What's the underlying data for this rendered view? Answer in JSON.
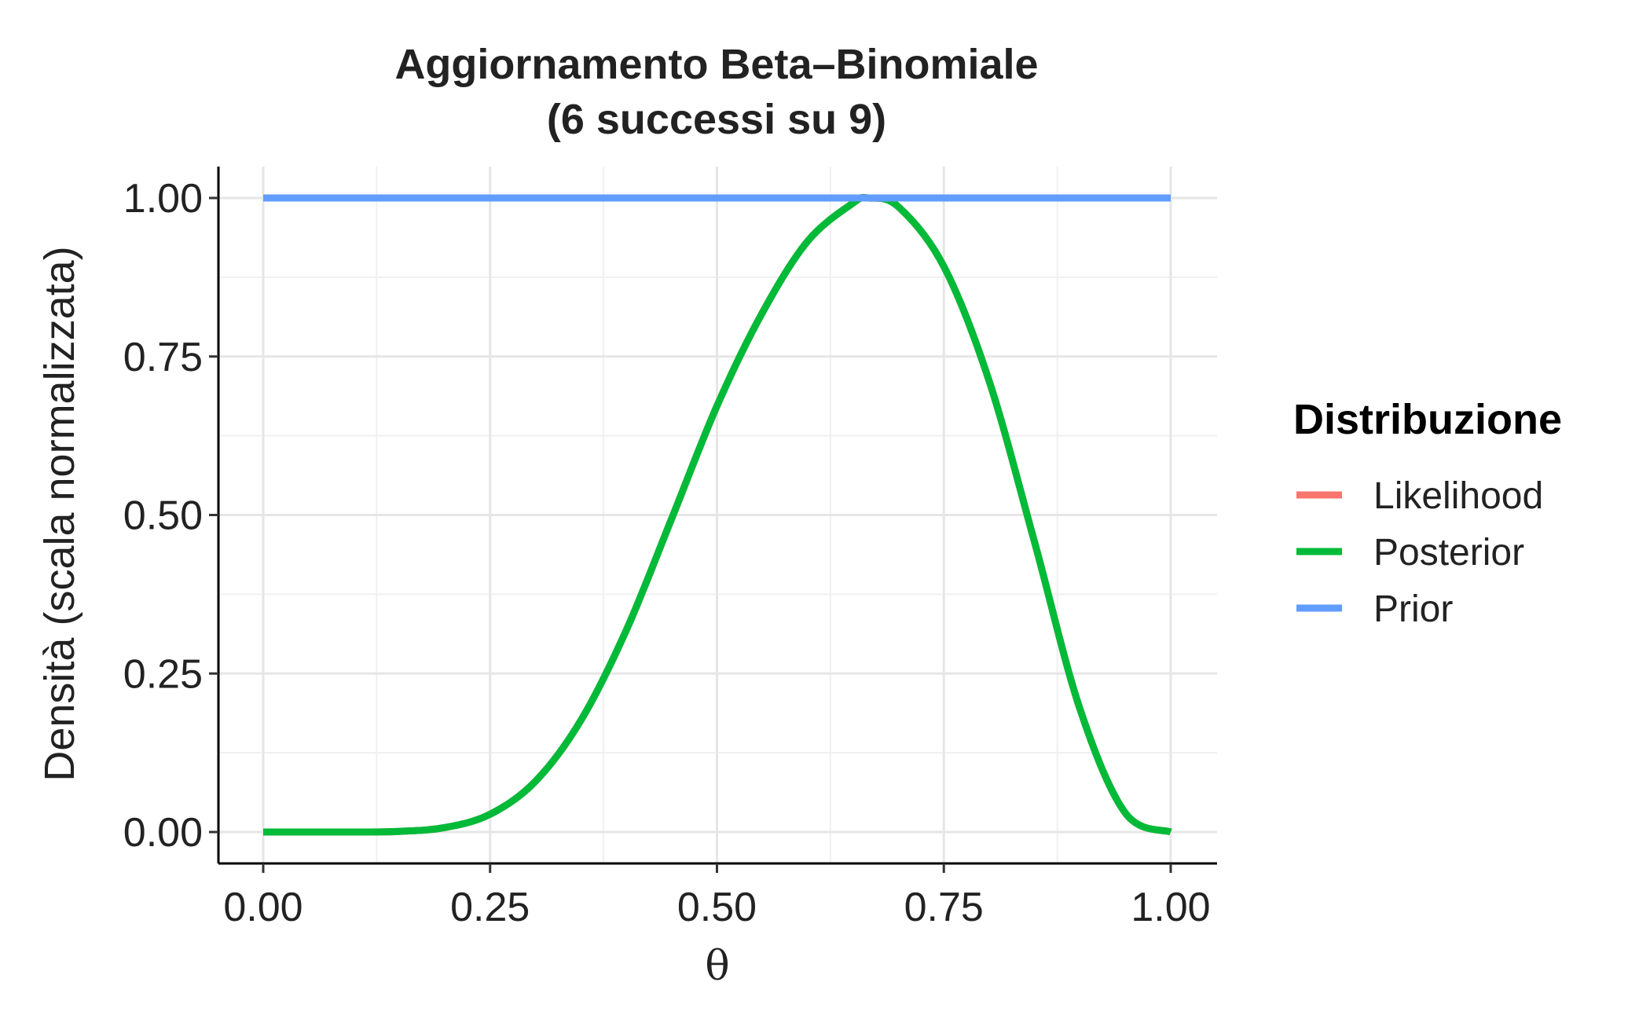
{
  "chart_data": {
    "type": "line",
    "title": "Aggiornamento Beta–Binomiale",
    "subtitle": "(6 successi su 9)",
    "xlabel": "θ",
    "ylabel": "Densità (scala normalizzata)",
    "xlim": [
      0,
      1
    ],
    "ylim": [
      0,
      1
    ],
    "x_ticks": [
      "0.00",
      "0.25",
      "0.50",
      "0.75",
      "1.00"
    ],
    "y_ticks": [
      "0.00",
      "0.25",
      "0.50",
      "0.75",
      "1.00"
    ],
    "grid": true,
    "legend_title": "Distribuzione",
    "legend_position": "right",
    "series": [
      {
        "name": "Likelihood",
        "color": "#F8766D",
        "x": [
          0.0,
          0.05,
          0.1,
          0.15,
          0.2,
          0.25,
          0.3,
          0.35,
          0.4,
          0.45,
          0.5,
          0.55,
          0.6,
          0.65,
          0.6667,
          0.7,
          0.75,
          0.8,
          0.85,
          0.9,
          0.95,
          1.0
        ],
        "values": [
          0.0,
          0.0,
          0.0,
          0.001,
          0.007,
          0.028,
          0.08,
          0.176,
          0.318,
          0.494,
          0.672,
          0.819,
          0.932,
          0.992,
          1.0,
          0.986,
          0.892,
          0.711,
          0.457,
          0.194,
          0.03,
          0.0
        ]
      },
      {
        "name": "Posterior",
        "color": "#00BA38",
        "x": [
          0.0,
          0.05,
          0.1,
          0.15,
          0.2,
          0.25,
          0.3,
          0.35,
          0.4,
          0.45,
          0.5,
          0.55,
          0.6,
          0.65,
          0.6667,
          0.7,
          0.75,
          0.8,
          0.85,
          0.9,
          0.95,
          1.0
        ],
        "values": [
          0.0,
          0.0,
          0.0,
          0.001,
          0.007,
          0.028,
          0.08,
          0.176,
          0.318,
          0.494,
          0.672,
          0.819,
          0.932,
          0.992,
          1.0,
          0.986,
          0.892,
          0.711,
          0.457,
          0.194,
          0.03,
          0.0
        ]
      },
      {
        "name": "Prior",
        "color": "#619CFF",
        "x": [
          0.0,
          1.0
        ],
        "values": [
          1.0,
          1.0
        ]
      }
    ]
  }
}
